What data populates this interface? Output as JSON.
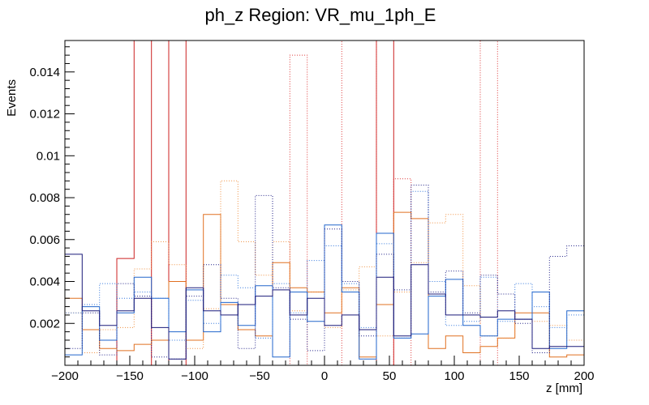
{
  "chart_data": {
    "type": "histogram",
    "title": "ph_z Region: VR_mu_1ph_E",
    "xlabel": "z [mm]",
    "ylabel": "Events",
    "xlim": [
      -200,
      200
    ],
    "ylim": [
      0,
      0.0155
    ],
    "bin_edges_start": -200,
    "bin_width": 13.333,
    "x_ticks": [
      -200,
      -150,
      -100,
      -50,
      0,
      50,
      100,
      150,
      200
    ],
    "x_tick_labels": [
      "−200",
      "−150",
      "−100",
      "−50",
      "0",
      "50",
      "100",
      "150",
      "200"
    ],
    "y_ticks": [
      0.002,
      0.004,
      0.006,
      0.008,
      0.01,
      0.012,
      0.014
    ],
    "y_tick_labels": [
      "0.002",
      "0.004",
      "0.006",
      "0.008",
      "0.01",
      "0.012",
      "0.014"
    ],
    "series": [
      {
        "name": "red solid",
        "color": "#cc2222",
        "dash": "",
        "values": [
          0,
          0,
          0,
          0.0051,
          0.0155,
          0,
          0.0155,
          0,
          0,
          0,
          0,
          0,
          0,
          0,
          0,
          0,
          0,
          0,
          0.0155,
          0,
          0,
          0,
          0,
          0,
          0,
          0,
          0,
          0,
          0,
          0
        ]
      },
      {
        "name": "red dotted",
        "color": "#dd3333",
        "dash": "1,2",
        "values": [
          0,
          0,
          0,
          0,
          0,
          0,
          0,
          0,
          0,
          0,
          0,
          0,
          0,
          0.0148,
          0,
          0,
          0.0155,
          0.0155,
          0,
          0.0089,
          0,
          0,
          0,
          0,
          0.0155,
          0,
          0,
          0,
          0,
          0
        ]
      },
      {
        "name": "orange solid",
        "color": "#e07020",
        "dash": "",
        "values": [
          0.0032,
          0.0017,
          0.0008,
          0.0007,
          0.001,
          0.0012,
          0.004,
          0.0012,
          0.0072,
          0.0029,
          0.0017,
          0.0014,
          0.0049,
          0.0037,
          0.0035,
          0.0025,
          0.0037,
          0.0004,
          0.0029,
          0.0073,
          0.007,
          0.0008,
          0.0014,
          0.0006,
          0.0009,
          0.0013,
          0.0025,
          0.0025,
          0.0004,
          0.0005
        ]
      },
      {
        "name": "orange dotted",
        "color": "#f09040",
        "dash": "1,2",
        "values": [
          0.0025,
          0.0006,
          0.0017,
          0.0018,
          0.0046,
          0.0059,
          0.0048,
          0.0008,
          0.0027,
          0.0088,
          0.0059,
          0.0043,
          0.0059,
          0.0026,
          0.0035,
          0.0018,
          0.0036,
          0.0047,
          0.0014,
          0.0035,
          0.0049,
          0.0068,
          0.0072,
          0.0038,
          0.0014,
          0.0013,
          0.0022,
          0.0021,
          0.0019,
          0.0012
        ]
      },
      {
        "name": "blue solid",
        "color": "#2266cc",
        "dash": "",
        "values": [
          0.0005,
          0.0028,
          0.0012,
          0.0025,
          0.0042,
          0.0032,
          0.0016,
          0.0036,
          0.0016,
          0.003,
          0.0019,
          0.0038,
          0.0004,
          0.0035,
          0.0021,
          0.0067,
          0.0035,
          0.0003,
          0.0063,
          0.0013,
          0.0015,
          0.0033,
          0.0041,
          0.0019,
          0.0014,
          0.0022,
          0.0022,
          0.0035,
          0.0008,
          0.0026
        ]
      },
      {
        "name": "blue dotted",
        "color": "#3377dd",
        "dash": "1,2",
        "values": [
          0.0025,
          0.0029,
          0.0039,
          0.0032,
          0.0035,
          0.0032,
          0.0012,
          0.0031,
          0.002,
          0.0043,
          0.0037,
          0.0013,
          0.0039,
          0.0025,
          0.005,
          0.0057,
          0.0039,
          0.0018,
          0.0058,
          0.0013,
          0.0083,
          0.004,
          0.0019,
          0.0021,
          0.0042,
          0.0021,
          0.0039,
          0.0028,
          0.0018,
          0.0024
        ]
      },
      {
        "name": "navy solid",
        "color": "#1a1a7a",
        "dash": "",
        "values": [
          0.0053,
          0.0026,
          0.0019,
          0.0026,
          0.0032,
          0.0018,
          0.0003,
          0.0037,
          0.0026,
          0.0024,
          0.0029,
          0.0033,
          0.0036,
          0.0024,
          0.0032,
          0.0019,
          0.0024,
          0.0017,
          0.0042,
          0.0014,
          0.0048,
          0.0034,
          0.0024,
          0.0024,
          0.0023,
          0.0026,
          0.0022,
          0.0008,
          0.0009,
          0.0009
        ]
      },
      {
        "name": "navy dotted",
        "color": "#222288",
        "dash": "1,2",
        "values": [
          0.0008,
          0.0025,
          0.0005,
          0.0039,
          0.0033,
          0.0004,
          0.0003,
          0.0033,
          0.0048,
          0.0032,
          0.0008,
          0.0081,
          0.0037,
          0.0022,
          0.0007,
          0.0065,
          0.004,
          0.0014,
          0.0053,
          0.0036,
          0.0086,
          0.0035,
          0.0045,
          0.0025,
          0.0043,
          0.0034,
          0.002,
          0.0006,
          0.0052,
          0.0057
        ]
      }
    ]
  }
}
